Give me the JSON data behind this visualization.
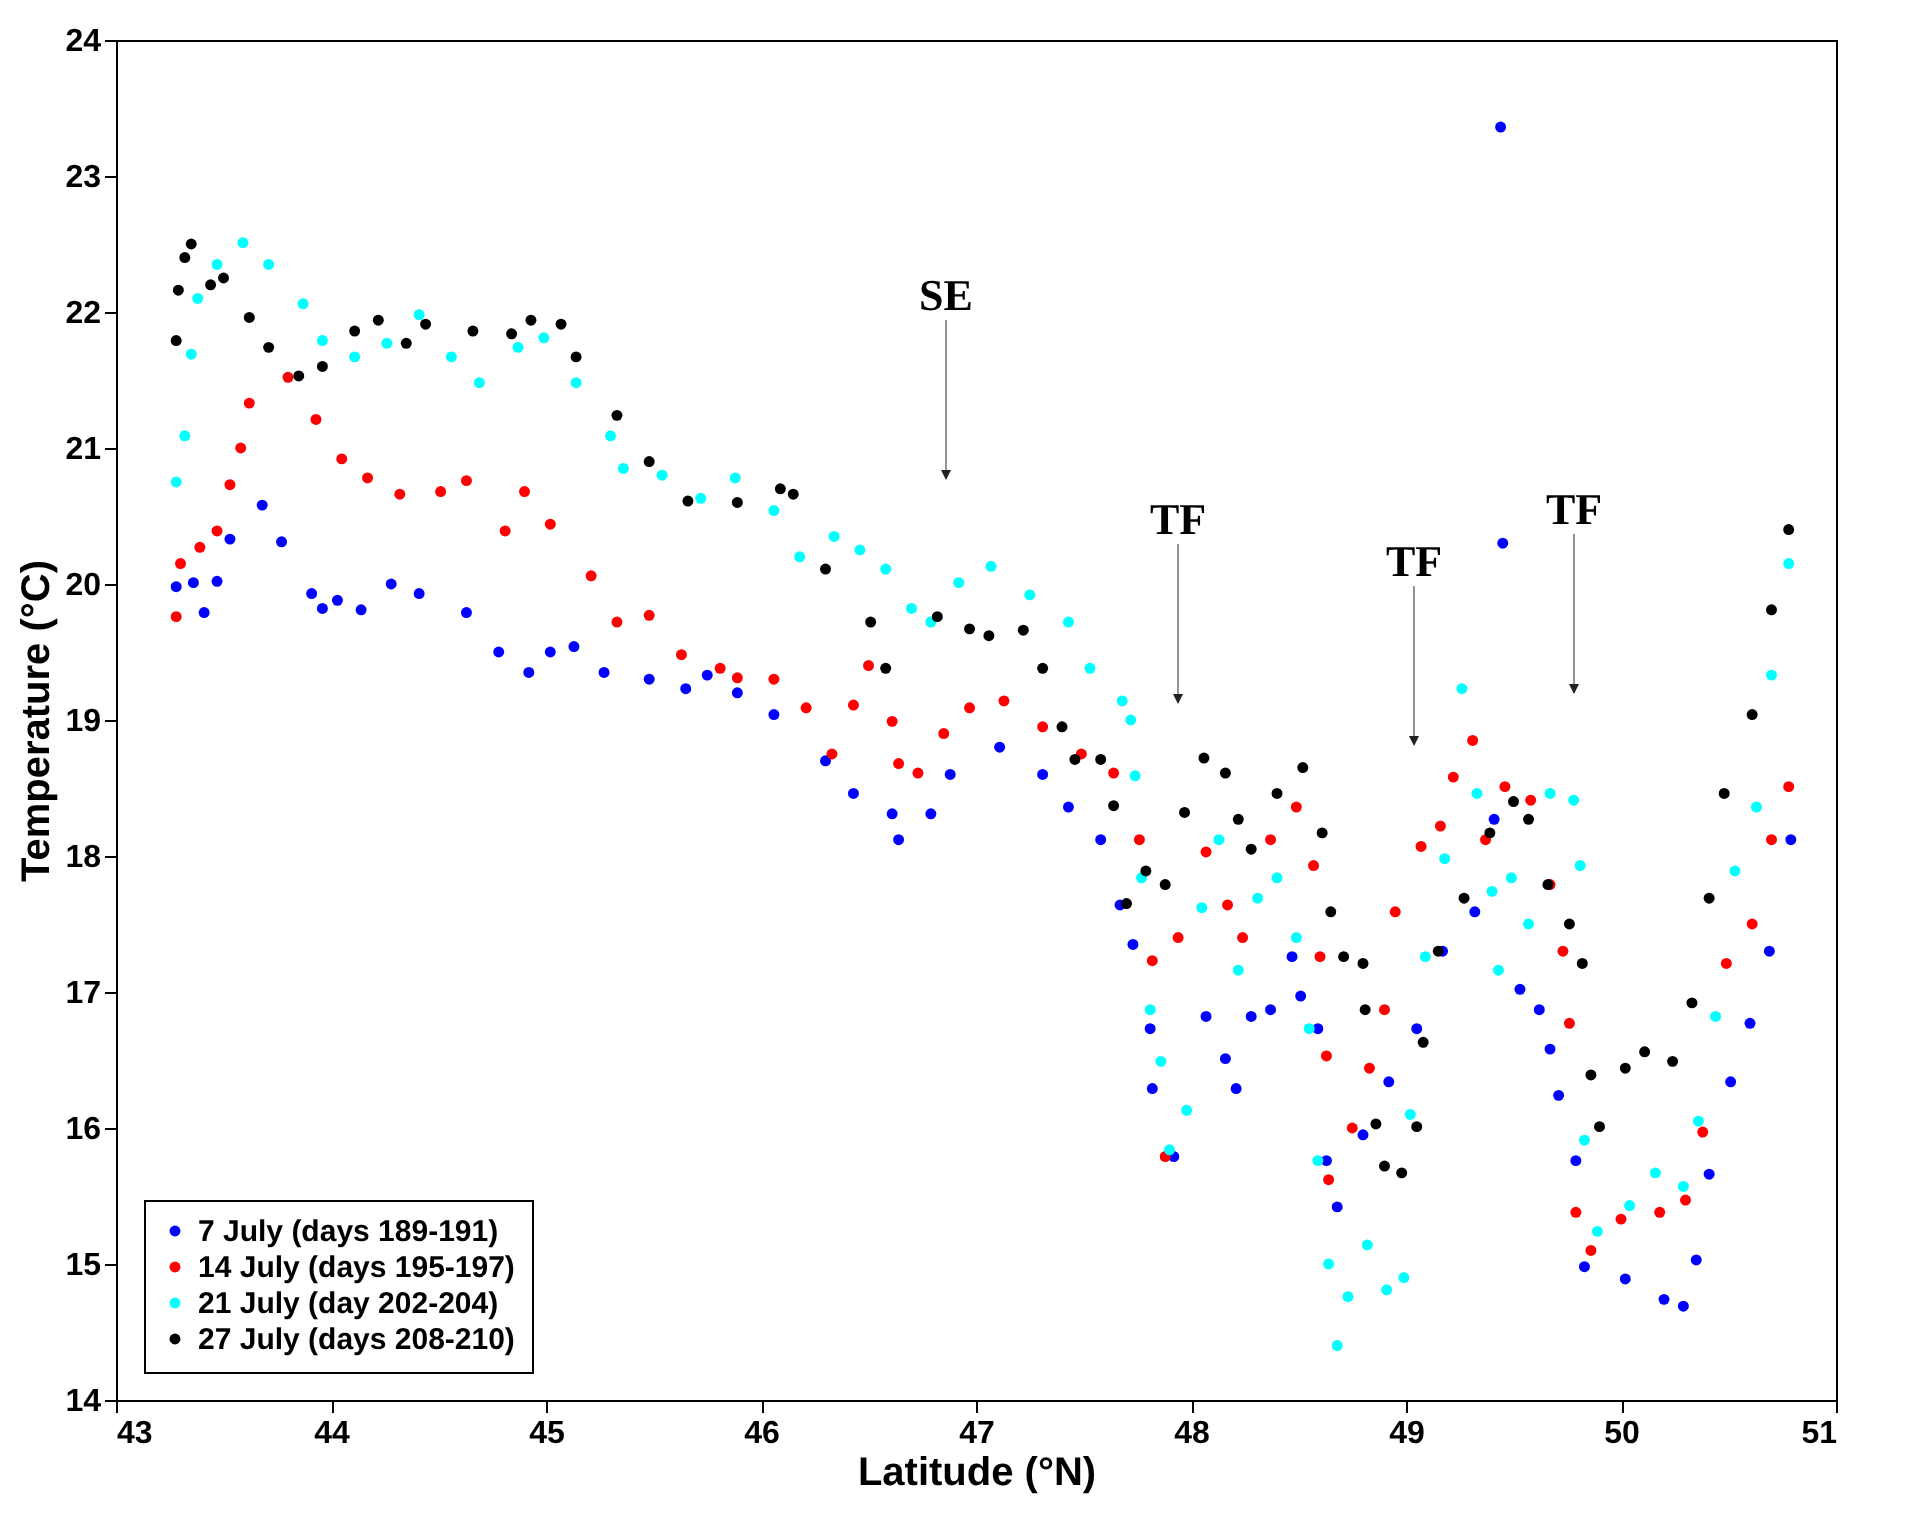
{
  "chart_data": {
    "type": "scatter",
    "xlabel": "Latitude (°N)",
    "ylabel": "Temperature (°C)",
    "xlim": [
      43,
      51
    ],
    "xticks": [
      43,
      44,
      45,
      46,
      47,
      48,
      49,
      50,
      51
    ],
    "ylim": [
      14,
      24
    ],
    "yticks": [
      14,
      15,
      16,
      17,
      18,
      19,
      20,
      21,
      22,
      23,
      24
    ],
    "grid": false,
    "legend": "bottom left",
    "marker": "circle",
    "annotations": [
      "SE",
      "TF",
      "TF",
      "TF"
    ],
    "series": [
      {
        "name": "7 July  (days 189-191)",
        "color": "#0000ff",
        "x": [
          43.28,
          43.36,
          43.41,
          43.47,
          43.53,
          43.68,
          43.77,
          43.91,
          43.96,
          44.03,
          44.14,
          44.28,
          44.41,
          44.63,
          44.78,
          44.92,
          45.02,
          45.13,
          45.27,
          45.48,
          45.65,
          45.75,
          45.89,
          46.06,
          46.3,
          46.43,
          46.61,
          46.64,
          46.79,
          46.88,
          47.11,
          47.31,
          47.43,
          47.58,
          47.67,
          47.73,
          47.81,
          47.82,
          47.92,
          48.07,
          48.16,
          48.21,
          48.28,
          48.37,
          48.47,
          48.51,
          48.59,
          48.63,
          48.68,
          48.8,
          48.92,
          49.05,
          49.17,
          49.32,
          49.41,
          49.53,
          49.62,
          49.67,
          49.71,
          49.79,
          49.83,
          50.02,
          50.2,
          50.29,
          50.35,
          50.41,
          50.51,
          50.6,
          50.69,
          50.79,
          49.44,
          49.45
        ],
        "values": [
          19.98,
          20.01,
          19.79,
          20.02,
          20.33,
          20.58,
          20.31,
          19.93,
          19.82,
          19.88,
          19.81,
          20.0,
          19.93,
          19.79,
          19.5,
          19.35,
          19.5,
          19.54,
          19.35,
          19.3,
          19.23,
          19.33,
          19.2,
          19.04,
          18.7,
          18.46,
          18.31,
          18.12,
          18.31,
          18.6,
          18.8,
          18.6,
          18.36,
          18.12,
          17.64,
          17.35,
          16.73,
          16.29,
          15.79,
          16.82,
          16.51,
          16.29,
          16.82,
          16.87,
          17.26,
          16.97,
          16.73,
          15.76,
          15.42,
          15.95,
          16.34,
          16.73,
          17.3,
          17.59,
          18.27,
          17.02,
          16.87,
          16.58,
          16.24,
          15.76,
          14.98,
          14.89,
          14.74,
          14.69,
          15.03,
          15.66,
          16.34,
          16.77,
          17.3,
          18.12,
          23.36,
          20.3
        ]
      },
      {
        "name": "14 July (days 195-197)",
        "color": "#ff0000",
        "x": [
          43.28,
          43.3,
          43.39,
          43.47,
          43.53,
          43.58,
          43.62,
          43.8,
          43.93,
          44.05,
          44.17,
          44.32,
          44.51,
          44.63,
          44.81,
          44.9,
          45.02,
          45.21,
          45.33,
          45.48,
          45.63,
          45.81,
          45.89,
          46.06,
          46.21,
          46.33,
          46.43,
          46.5,
          46.61,
          46.64,
          46.73,
          46.85,
          46.97,
          47.13,
          47.31,
          47.49,
          47.64,
          47.76,
          47.82,
          47.88,
          47.94,
          48.07,
          48.17,
          48.24,
          48.37,
          48.49,
          48.57,
          48.6,
          48.63,
          48.64,
          48.75,
          48.83,
          48.9,
          48.95,
          49.07,
          49.16,
          49.22,
          49.31,
          49.37,
          49.46,
          49.58,
          49.67,
          49.73,
          49.76,
          49.79,
          49.86,
          50.0,
          50.18,
          50.3,
          50.38,
          50.49,
          50.61,
          50.7,
          50.78
        ],
        "values": [
          19.76,
          20.15,
          20.27,
          20.39,
          20.73,
          21.0,
          21.33,
          21.52,
          21.21,
          20.92,
          20.78,
          20.66,
          20.68,
          20.76,
          20.39,
          20.68,
          20.44,
          20.06,
          19.72,
          19.77,
          19.48,
          19.38,
          19.31,
          19.3,
          19.09,
          18.75,
          19.11,
          19.4,
          18.99,
          18.68,
          18.61,
          18.9,
          19.09,
          19.14,
          18.95,
          18.75,
          18.61,
          18.12,
          17.23,
          15.79,
          17.4,
          18.03,
          17.64,
          17.4,
          18.12,
          18.36,
          17.93,
          17.26,
          16.53,
          15.62,
          16.0,
          16.44,
          16.87,
          17.59,
          18.07,
          18.22,
          18.58,
          18.85,
          18.12,
          18.51,
          18.41,
          17.79,
          17.3,
          16.77,
          15.38,
          15.1,
          15.33,
          15.38,
          15.47,
          15.97,
          17.21,
          17.5,
          18.12,
          18.51
        ]
      },
      {
        "name": "21 July (day 202-204)",
        "color": "#00ffff",
        "x": [
          43.28,
          43.32,
          43.35,
          43.38,
          43.47,
          43.59,
          43.71,
          43.87,
          43.96,
          44.11,
          44.26,
          44.41,
          44.56,
          44.69,
          44.87,
          44.99,
          45.14,
          45.3,
          45.36,
          45.54,
          45.72,
          45.88,
          46.06,
          46.18,
          46.34,
          46.46,
          46.58,
          46.7,
          46.79,
          46.92,
          47.07,
          47.25,
          47.43,
          47.53,
          47.68,
          47.72,
          47.74,
          47.77,
          47.81,
          47.86,
          47.9,
          47.98,
          48.05,
          48.13,
          48.22,
          48.31,
          48.4,
          48.49,
          48.55,
          48.59,
          48.64,
          48.68,
          48.73,
          48.82,
          48.91,
          48.99,
          49.02,
          49.09,
          49.18,
          49.26,
          49.33,
          49.4,
          49.43,
          49.49,
          49.57,
          49.67,
          49.78,
          49.81,
          49.83,
          49.89,
          50.04,
          50.16,
          50.29,
          50.36,
          50.44,
          50.53,
          50.63,
          50.7,
          50.78
        ],
        "values": [
          20.75,
          21.09,
          21.69,
          22.1,
          22.35,
          22.51,
          22.35,
          22.06,
          21.79,
          21.67,
          21.77,
          21.98,
          21.67,
          21.48,
          21.74,
          21.81,
          21.48,
          21.09,
          20.85,
          20.8,
          20.63,
          20.78,
          20.54,
          20.2,
          20.35,
          20.25,
          20.11,
          19.82,
          19.72,
          20.01,
          20.13,
          19.92,
          19.72,
          19.38,
          19.14,
          19.0,
          18.59,
          17.84,
          16.87,
          16.49,
          15.84,
          16.13,
          17.62,
          18.12,
          17.16,
          17.69,
          17.84,
          17.4,
          16.73,
          15.76,
          15.0,
          14.4,
          14.76,
          15.14,
          14.81,
          14.9,
          16.1,
          17.26,
          17.98,
          19.23,
          18.46,
          17.74,
          17.16,
          17.84,
          17.5,
          18.46,
          18.41,
          17.93,
          15.91,
          15.24,
          15.43,
          15.67,
          15.57,
          16.05,
          16.82,
          17.89,
          18.36,
          19.33,
          20.15
        ]
      },
      {
        "name": "27 July (days 208-210)",
        "color": "#000000",
        "x": [
          43.28,
          43.29,
          43.32,
          43.35,
          43.44,
          43.5,
          43.62,
          43.71,
          43.85,
          43.96,
          44.11,
          44.22,
          44.35,
          44.44,
          44.66,
          44.84,
          44.93,
          45.07,
          45.14,
          45.33,
          45.48,
          45.66,
          45.89,
          46.09,
          46.15,
          46.3,
          46.51,
          46.58,
          46.82,
          46.97,
          47.06,
          47.22,
          47.31,
          47.4,
          47.46,
          47.58,
          47.64,
          47.7,
          47.79,
          47.88,
          47.97,
          48.06,
          48.16,
          48.22,
          48.28,
          48.4,
          48.52,
          48.61,
          48.65,
          48.71,
          48.8,
          48.81,
          48.86,
          48.9,
          48.98,
          49.05,
          49.08,
          49.15,
          49.27,
          49.39,
          49.5,
          49.57,
          49.66,
          49.76,
          49.82,
          49.86,
          49.9,
          50.02,
          50.11,
          50.24,
          50.33,
          50.41,
          50.48,
          50.61,
          50.7,
          50.78
        ],
        "values": [
          21.79,
          22.16,
          22.4,
          22.5,
          22.2,
          22.25,
          21.96,
          21.74,
          21.53,
          21.6,
          21.86,
          21.94,
          21.77,
          21.91,
          21.86,
          21.84,
          21.94,
          21.91,
          21.67,
          21.24,
          20.9,
          20.61,
          20.6,
          20.7,
          20.66,
          20.11,
          19.72,
          19.38,
          19.76,
          19.67,
          19.62,
          19.66,
          19.38,
          18.95,
          18.71,
          18.71,
          18.37,
          17.65,
          17.89,
          17.79,
          18.32,
          18.72,
          18.61,
          18.27,
          18.05,
          18.46,
          18.65,
          18.17,
          17.59,
          17.26,
          17.21,
          16.87,
          16.03,
          15.72,
          15.67,
          16.01,
          16.63,
          17.3,
          17.69,
          18.17,
          18.4,
          18.27,
          17.79,
          17.5,
          17.21,
          16.39,
          16.01,
          16.44,
          16.56,
          16.49,
          16.92,
          17.69,
          18.46,
          19.04,
          19.81,
          20.4
        ]
      }
    ]
  }
}
